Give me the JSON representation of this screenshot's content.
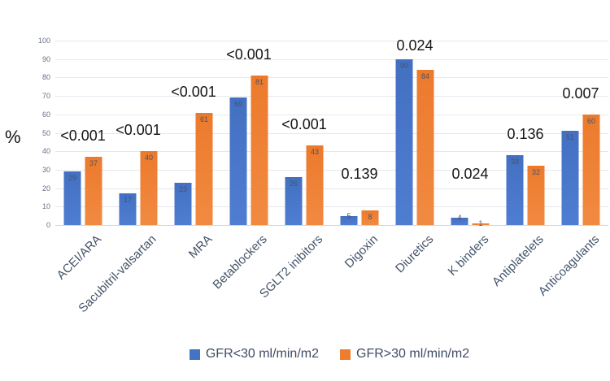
{
  "chart_data": {
    "type": "bar",
    "title": "",
    "xlabel": "",
    "ylabel": "%",
    "ylim": [
      0,
      100
    ],
    "yticks": [
      0,
      10,
      20,
      30,
      40,
      50,
      60,
      70,
      80,
      90,
      100
    ],
    "grid": true,
    "legend_position": "bottom",
    "categories": [
      "ACEI/ARA",
      "Sacubitril-valsartan",
      "MRA",
      "Betablockers",
      "SGLT2 inibitors",
      "Digoxin",
      "Diuretics",
      "K binders",
      "Antiplatelets",
      "Anticoagulants"
    ],
    "series": [
      {
        "name": "GFR<30 ml/min/m2",
        "color": "#4472C4",
        "values": [
          29,
          17,
          23,
          69,
          26,
          5,
          90,
          4,
          38,
          51
        ]
      },
      {
        "name": "GFR>30 ml/min/m2",
        "color": "#ED7D31",
        "values": [
          37,
          40,
          61,
          81,
          43,
          8,
          84,
          1,
          32,
          60
        ]
      }
    ],
    "p_values": [
      "<0.001",
      "<0.001",
      "<0.001",
      "<0.001",
      "<0.001",
      "0.139",
      "0.024",
      "0.024",
      "0.136",
      "0.007"
    ]
  }
}
